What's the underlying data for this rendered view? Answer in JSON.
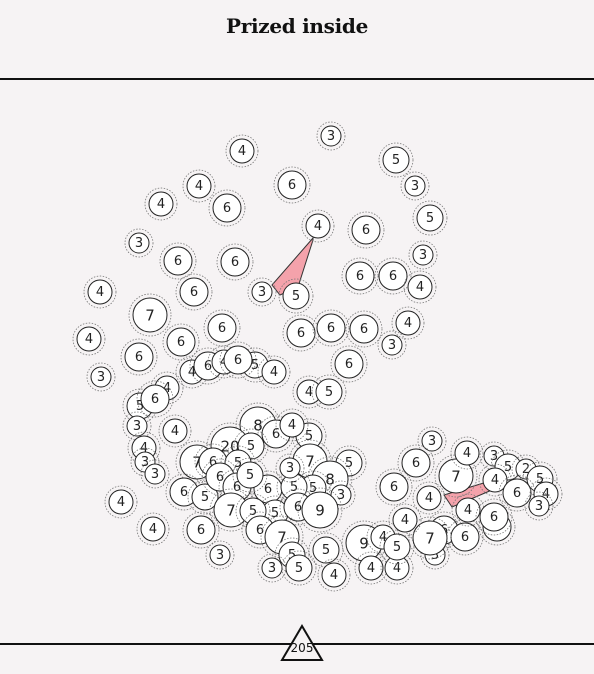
{
  "title": "Prized inside",
  "counter": "205",
  "colors": {
    "background": "#f6f3f4",
    "bubble_fill": "#ffffff",
    "bubble_stroke": "#222222",
    "halo_stroke": "#777777",
    "highlight": "#f4a2ab"
  },
  "bubbles": [
    {
      "label": "3"
    },
    {
      "label": "4"
    },
    {
      "label": "5"
    },
    {
      "label": "3"
    },
    {
      "label": "6"
    },
    {
      "label": "4"
    },
    {
      "label": "4"
    },
    {
      "label": "6"
    },
    {
      "label": "5"
    },
    {
      "label": "4"
    },
    {
      "label": "6"
    },
    {
      "label": "3"
    },
    {
      "label": "3"
    },
    {
      "label": "6"
    },
    {
      "label": "6"
    },
    {
      "label": "3"
    },
    {
      "label": "5"
    },
    {
      "label": "6"
    },
    {
      "label": "6"
    },
    {
      "label": "4"
    },
    {
      "label": "4"
    },
    {
      "label": "7"
    },
    {
      "label": "6"
    },
    {
      "label": "6"
    },
    {
      "label": "6"
    },
    {
      "label": "6"
    },
    {
      "label": "4"
    },
    {
      "label": "4"
    },
    {
      "label": "6"
    },
    {
      "label": "6"
    },
    {
      "label": "3"
    },
    {
      "label": "3"
    },
    {
      "label": "6"
    },
    {
      "label": "6"
    },
    {
      "label": "4"
    },
    {
      "label": "6"
    },
    {
      "label": "5"
    },
    {
      "label": "4"
    },
    {
      "label": "6"
    },
    {
      "label": "4"
    },
    {
      "label": "4"
    },
    {
      "label": "5"
    },
    {
      "label": "4"
    },
    {
      "label": "5"
    },
    {
      "label": "6"
    },
    {
      "label": "3"
    },
    {
      "label": "8"
    },
    {
      "label": "4"
    },
    {
      "label": "6"
    },
    {
      "label": "5"
    },
    {
      "label": "4"
    },
    {
      "label": "4"
    },
    {
      "label": "3"
    },
    {
      "label": "20"
    },
    {
      "label": "5"
    },
    {
      "label": "7"
    },
    {
      "label": "6"
    },
    {
      "label": "5"
    },
    {
      "label": "3"
    },
    {
      "label": "5"
    },
    {
      "label": "7"
    },
    {
      "label": "5"
    },
    {
      "label": "8"
    },
    {
      "label": "5"
    },
    {
      "label": "3"
    },
    {
      "label": "6"
    },
    {
      "label": "5"
    },
    {
      "label": "6"
    },
    {
      "label": "6"
    },
    {
      "label": "6"
    },
    {
      "label": "5"
    },
    {
      "label": "5"
    },
    {
      "label": "6"
    },
    {
      "label": "9"
    },
    {
      "label": "4"
    },
    {
      "label": "7"
    },
    {
      "label": "5"
    },
    {
      "label": "5"
    },
    {
      "label": "6"
    },
    {
      "label": "6"
    },
    {
      "label": "7"
    },
    {
      "label": "4"
    },
    {
      "label": "5"
    },
    {
      "label": "3"
    },
    {
      "label": "5"
    },
    {
      "label": "3"
    },
    {
      "label": "5"
    },
    {
      "label": "4"
    },
    {
      "label": "3"
    },
    {
      "label": "9"
    },
    {
      "label": "4"
    },
    {
      "label": "4"
    },
    {
      "label": "4"
    },
    {
      "label": "5"
    },
    {
      "label": "3"
    },
    {
      "label": "6"
    },
    {
      "label": "6"
    },
    {
      "label": "3"
    },
    {
      "label": "6"
    },
    {
      "label": "7"
    },
    {
      "label": "6"
    },
    {
      "label": "7"
    },
    {
      "label": "6"
    },
    {
      "label": "4"
    },
    {
      "label": "4"
    },
    {
      "label": "4"
    },
    {
      "label": "4"
    },
    {
      "label": "3"
    },
    {
      "label": "5"
    },
    {
      "label": "2"
    },
    {
      "label": "5"
    },
    {
      "label": "4"
    },
    {
      "label": "6"
    },
    {
      "label": "6"
    },
    {
      "label": "4"
    },
    {
      "label": "3"
    },
    {
      "label": "4"
    }
  ]
}
